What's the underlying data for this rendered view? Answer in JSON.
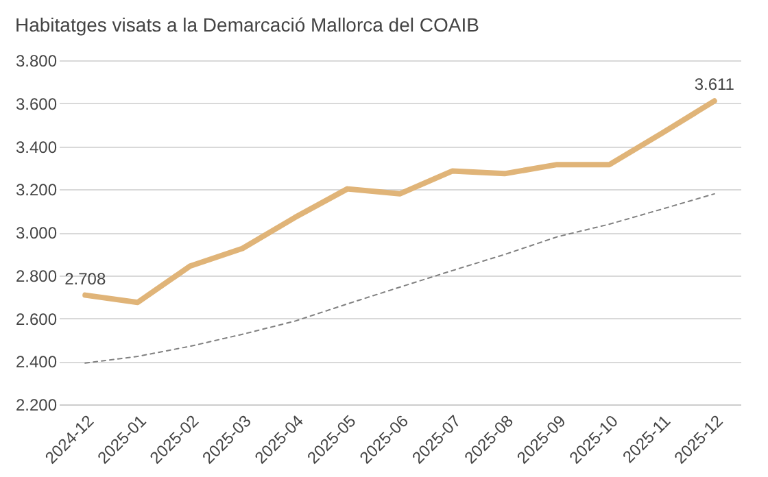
{
  "chart_data": {
    "type": "line",
    "title": "Habitatges visats a la Demarcació Mallorca del COAIB",
    "categories": [
      "2024-12",
      "2025-01",
      "2025-02",
      "2025-03",
      "2025-04",
      "2025-05",
      "2025-06",
      "2025-07",
      "2025-08",
      "2025-09",
      "2025-10",
      "2025-11",
      "2025-12"
    ],
    "series": [
      {
        "color": "#e0b478",
        "values": [
          2708,
          2674,
          2843,
          2925,
          3069,
          3202,
          3179,
          3285,
          3273,
          3315,
          3315,
          3461,
          3611
        ],
        "line_style": "solid"
      },
      {
        "color": "#808080",
        "values": [
          2392,
          2423,
          2470,
          2526,
          2587,
          2667,
          2745,
          2822,
          2897,
          2979,
          3038,
          3108,
          3179
        ],
        "line_style": "dashed"
      }
    ],
    "annotations": [
      {
        "text": "2.708",
        "x": "2024-12",
        "y": 2708
      },
      {
        "text": "3.611",
        "x": "2025-12",
        "y": 3611
      }
    ],
    "ylim": [
      2200,
      3800
    ],
    "yticks": [
      {
        "value": 2200,
        "label": "2.200"
      },
      {
        "value": 2400,
        "label": "2.400"
      },
      {
        "value": 2600,
        "label": "2.600"
      },
      {
        "value": 2800,
        "label": "2.800"
      },
      {
        "value": 3000,
        "label": "3.000"
      },
      {
        "value": 3200,
        "label": "3.200"
      },
      {
        "value": 3400,
        "label": "3.400"
      },
      {
        "value": 3600,
        "label": "3.600"
      },
      {
        "value": 3800,
        "label": "3.800"
      }
    ],
    "grid": "y",
    "marker": "none"
  }
}
